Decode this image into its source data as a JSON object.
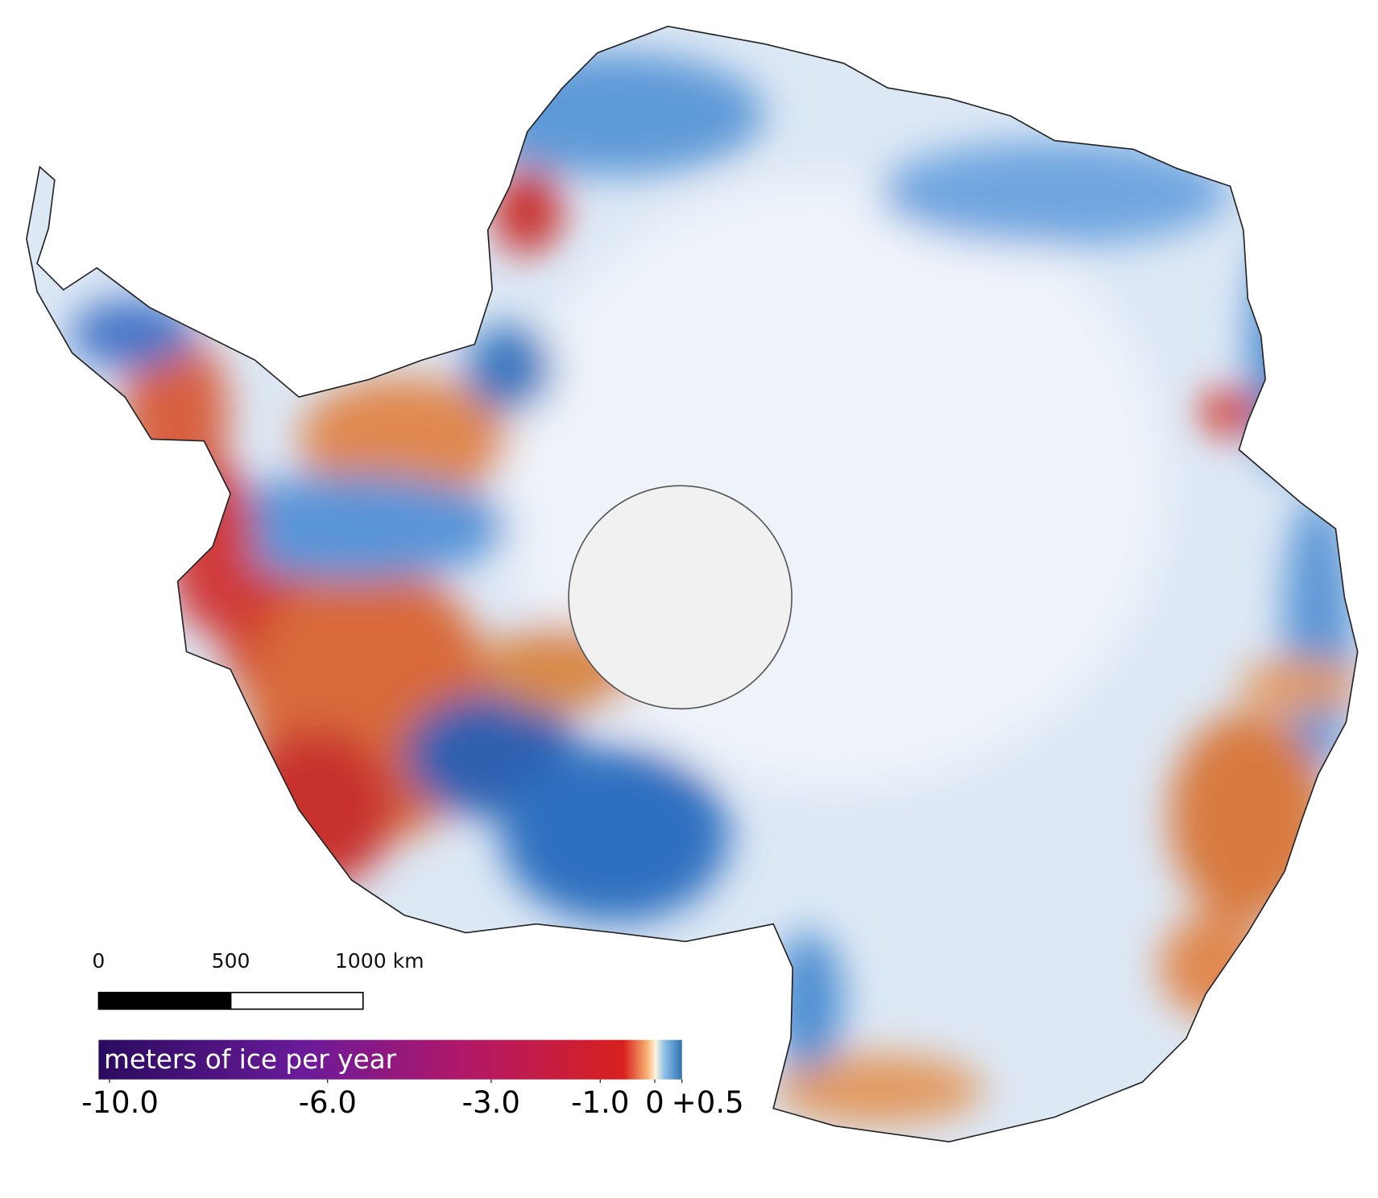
{
  "scale_bar": {
    "lim": [
      0,
      1000
    ],
    "ticks": [
      0,
      500,
      {
        "value": 1000,
        "label": "1000 km"
      }
    ]
  },
  "colorbar": {
    "label": "meters of ice per year",
    "lim": [
      -10.2,
      0.5
    ],
    "ticks": [
      {
        "value": -10,
        "label": "-10.0"
      },
      {
        "value": -6,
        "label": "-6.0"
      },
      {
        "value": -3,
        "label": "-3.0"
      },
      {
        "value": -1,
        "label": "-1.0"
      },
      0,
      {
        "value": 0.5,
        "label": "+0.5"
      }
    ]
  }
}
